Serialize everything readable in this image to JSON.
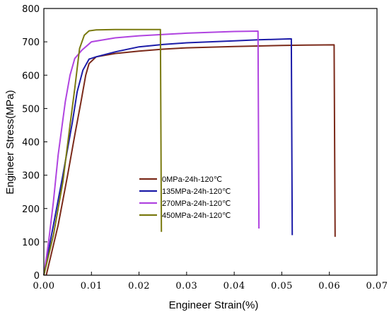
{
  "chart_data": {
    "type": "line",
    "title": "",
    "xlabel": "Engineer Strain(%)",
    "ylabel": "Engineer Stress(MPa)",
    "xlim": [
      0.0,
      0.07
    ],
    "ylim": [
      0,
      800
    ],
    "x_ticks": [
      "0.00",
      "0.01",
      "0.02",
      "0.03",
      "0.04",
      "0.05",
      "0.06",
      "0.07"
    ],
    "y_ticks": [
      "0",
      "100",
      "200",
      "300",
      "400",
      "500",
      "600",
      "700",
      "800"
    ],
    "grid": false,
    "legend_position": "center-left",
    "series": [
      {
        "name": "0MPa-24h-120℃",
        "color": "#7b2a1a",
        "points": [
          [
            0.0005,
            0
          ],
          [
            0.003,
            150
          ],
          [
            0.005,
            300
          ],
          [
            0.0065,
            420
          ],
          [
            0.0078,
            520
          ],
          [
            0.0088,
            600
          ],
          [
            0.0095,
            635
          ],
          [
            0.011,
            655
          ],
          [
            0.015,
            665
          ],
          [
            0.02,
            672
          ],
          [
            0.025,
            678
          ],
          [
            0.03,
            682
          ],
          [
            0.04,
            686
          ],
          [
            0.05,
            689
          ],
          [
            0.055,
            690
          ],
          [
            0.061,
            691
          ],
          [
            0.0612,
            115
          ]
        ]
      },
      {
        "name": "135MPa-24h-120℃",
        "color": "#1c1ca8",
        "points": [
          [
            0.0,
            0
          ],
          [
            0.002,
            150
          ],
          [
            0.004,
            300
          ],
          [
            0.006,
            460
          ],
          [
            0.007,
            550
          ],
          [
            0.0082,
            615
          ],
          [
            0.0095,
            648
          ],
          [
            0.011,
            655
          ],
          [
            0.015,
            670
          ],
          [
            0.02,
            685
          ],
          [
            0.025,
            692
          ],
          [
            0.03,
            697
          ],
          [
            0.04,
            703
          ],
          [
            0.045,
            706
          ],
          [
            0.052,
            709
          ],
          [
            0.0522,
            120
          ]
        ]
      },
      {
        "name": "270MPa-24h-120℃",
        "color": "#b044e0",
        "points": [
          [
            0.0,
            0
          ],
          [
            0.001,
            100
          ],
          [
            0.002,
            220
          ],
          [
            0.003,
            360
          ],
          [
            0.0045,
            520
          ],
          [
            0.0055,
            600
          ],
          [
            0.0065,
            650
          ],
          [
            0.008,
            675
          ],
          [
            0.01,
            700
          ],
          [
            0.015,
            712
          ],
          [
            0.02,
            718
          ],
          [
            0.025,
            722
          ],
          [
            0.03,
            726
          ],
          [
            0.04,
            731
          ],
          [
            0.045,
            732
          ],
          [
            0.0452,
            140
          ]
        ]
      },
      {
        "name": "450MPa-24h-120℃",
        "color": "#7a7a10",
        "points": [
          [
            0.0,
            0
          ],
          [
            0.002,
            120
          ],
          [
            0.004,
            280
          ],
          [
            0.0055,
            450
          ],
          [
            0.0065,
            560
          ],
          [
            0.007,
            620
          ],
          [
            0.0075,
            680
          ],
          [
            0.0085,
            720
          ],
          [
            0.0095,
            733
          ],
          [
            0.011,
            736
          ],
          [
            0.015,
            737
          ],
          [
            0.02,
            737
          ],
          [
            0.0245,
            737
          ],
          [
            0.0247,
            130
          ]
        ]
      }
    ]
  }
}
